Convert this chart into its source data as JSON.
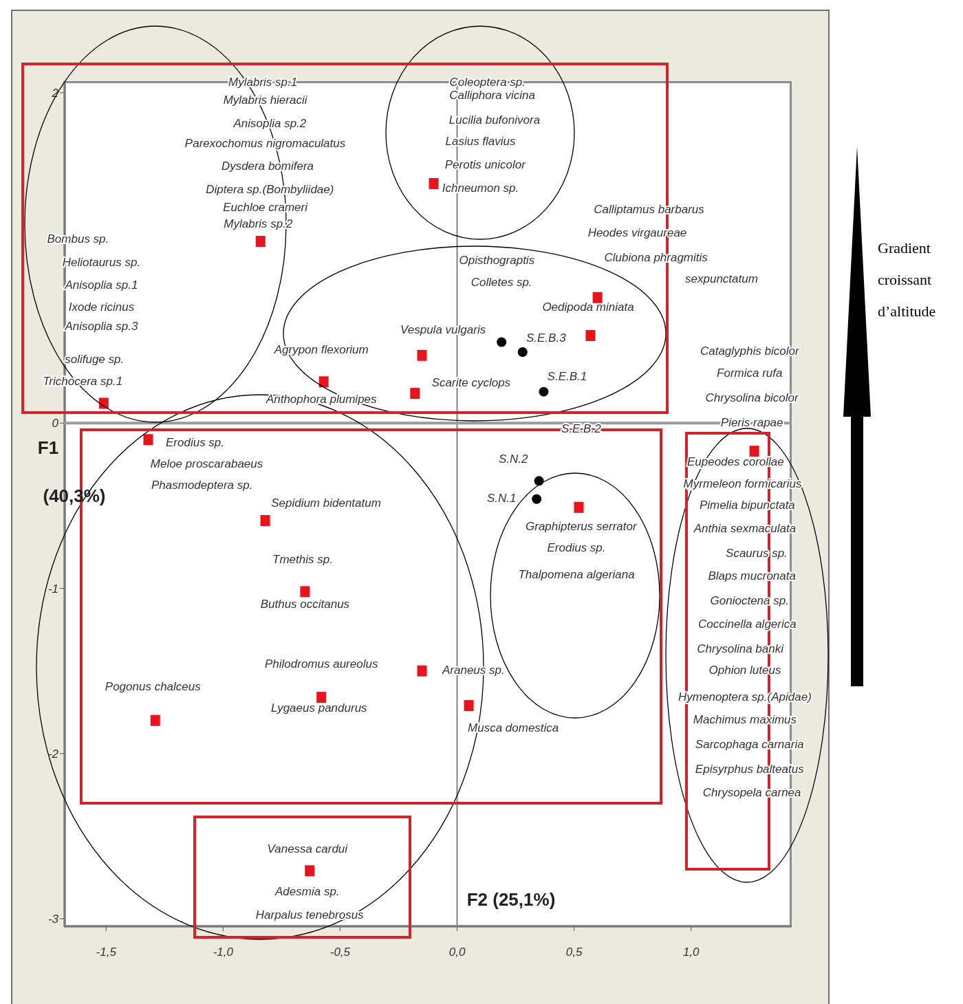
{
  "chart_data": {
    "type": "scatter",
    "xlabel": "F2 (25,1%)",
    "ylabel": "F1 (40,3%)",
    "xlim": [
      -1.68,
      1.43
    ],
    "ylim": [
      -3.05,
      2.07
    ],
    "xticks": [
      {
        "value": -1.5,
        "label": "-1,5"
      },
      {
        "value": -1,
        "label": "-1,0"
      },
      {
        "value": -0.5,
        "label": "-0,5"
      },
      {
        "value": 0,
        "label": "0,0"
      },
      {
        "value": 0.5,
        "label": "0,5"
      },
      {
        "value": 1,
        "label": "1,0"
      }
    ],
    "yticks": [
      2,
      0,
      -1,
      -2,
      -3
    ],
    "series": [
      {
        "color": "#e8141c",
        "marker": "square",
        "x": [
          -0.84,
          -0.1,
          -1.51,
          -0.57,
          -0.15,
          -0.18,
          0.6,
          0.57,
          -1.32,
          -0.82,
          -0.65,
          -0.15,
          -0.58,
          -1.29,
          0.05,
          0.52,
          1.27,
          -0.63
        ],
        "values": [
          1.1,
          1.45,
          0.12,
          0.25,
          0.41,
          0.18,
          0.76,
          0.53,
          -0.1,
          -0.59,
          -1.02,
          -1.5,
          -1.66,
          -1.8,
          -1.71,
          -0.51,
          -0.17,
          -2.71
        ]
      },
      {
        "color": "#000000",
        "marker": "circle",
        "x": [
          0.19,
          0.28,
          0.37,
          0.35,
          0.34
        ],
        "values": [
          0.49,
          0.43,
          0.19,
          -0.35,
          -0.46
        ]
      }
    ],
    "ref_lines": [
      {
        "axis": "x",
        "value": 0,
        "color": "#808080"
      },
      {
        "axis": "y",
        "value": 0,
        "color": "#9a9a9a"
      }
    ],
    "annotations": [
      "Mylabris sp.1",
      "Mylabris hieracii",
      "Anisoplia sp.2",
      "Parexochomus nigromaculatus",
      "Dysdera bomifera",
      "Diptera sp.(Bombyliidae)",
      "Euchloe crameri",
      "Mylabris sp.2",
      "Bombus sp.",
      "Heliotaurus sp.",
      "Anisoplia sp.1",
      "Ixode ricinus",
      "Anisoplia sp.3",
      "solifuge sp.",
      "Trichocera sp.1",
      "Agrypon flexorium",
      "Anthophora plumipes",
      "Vespula vulgaris",
      "Scarite cyclops",
      "Coleoptera sp.",
      "Calliphora vicina",
      "Lucilia bufonivora",
      "Lasius flavius",
      "Perotis unicolor",
      "Ichneumon sp.",
      "Calliptamus barbarus",
      "Heodes virgaureae",
      "Opisthograptis",
      "Clubiona phragmitis",
      "sexpunctatum",
      "Colletes sp.",
      "Oedipoda miniata",
      "S.E.B.3",
      "S.E.B.1",
      "S.E.B.2",
      "S.N.2",
      "S.N.1",
      "Cataglyphis bicolor",
      "Formica rufa",
      "Chrysolina bicolor",
      "Pieris rapae",
      "Eupeodes corollae",
      "Myrmeleon formicarius",
      "Pimelia bipunctata",
      "Anthia sexmaculata",
      "Scaurus sp.",
      "Blaps mucronata",
      "Gonioctena sp.",
      "Coccinella algerica",
      "Chrysolina banki",
      "Ophion luteus",
      "Hymenoptera sp.(Apidae)",
      "Machimus maximus",
      "Sarcophaga carnaria",
      "Episyrphus balteatus",
      "Chrysopela carnea",
      "Erodius sp.",
      "Meloe proscarabaeus",
      "Phasmodeptera sp.",
      "Sepidium bidentatum",
      "Tmethis sp.",
      "Buthus occitanus",
      "Philodromus aureolus",
      "Araneus sp.",
      "Lygaeus pandurus",
      "Pogonus chalceus",
      "Musca domestica",
      "Graphipterus serrator",
      "Erodius sp.",
      "Thalpomena algeriana",
      "Vanessa cardui",
      "Adesmia sp.",
      "Harpalus tenebrosus",
      "Gradient croissant d’altitude"
    ]
  }
}
